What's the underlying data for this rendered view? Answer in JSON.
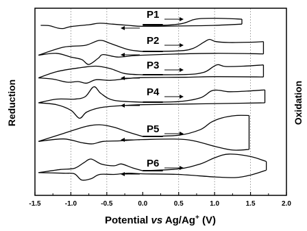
{
  "chart_data": {
    "type": "line",
    "title": "",
    "xlabel_parts": [
      "Potential ",
      "vs",
      " Ag/Ag",
      "+",
      " (V)"
    ],
    "ylabel_left": "Reduction",
    "ylabel_right": "Oxidation",
    "xlim": [
      -1.5,
      2.0
    ],
    "xticks": [
      -1.5,
      -1.0,
      -0.5,
      0.0,
      0.5,
      1.0,
      1.5,
      2.0
    ],
    "xtick_labels": [
      "-1.5",
      "-1.0",
      "-0.5",
      "0.0",
      "0.5",
      "1.0",
      "1.5",
      "2.0"
    ],
    "gridlines": [
      -1.0,
      -0.5,
      0.5,
      1.0,
      1.5
    ],
    "grid": "vertical dashed",
    "series": [
      {
        "name": "P1",
        "baseline": 0.0,
        "upper": [
          [
            0.0,
            0.0
          ],
          [
            0.3,
            0.02
          ],
          [
            0.55,
            0.3
          ],
          [
            0.7,
            0.9
          ],
          [
            0.8,
            1.1
          ],
          [
            1.0,
            1.15
          ],
          [
            1.2,
            1.1
          ],
          [
            1.38,
            1.0
          ]
        ],
        "lower": [
          [
            -1.42,
            0.0
          ],
          [
            -1.3,
            -0.05
          ],
          [
            -1.18,
            -0.45
          ],
          [
            -1.1,
            -0.5
          ],
          [
            -1.0,
            -0.2
          ],
          [
            -0.75,
            0.1
          ],
          [
            -0.6,
            0.35
          ],
          [
            -0.42,
            0.2
          ],
          [
            -0.2,
            0.0
          ],
          [
            0.0,
            -0.15
          ],
          [
            0.5,
            -0.1
          ],
          [
            1.0,
            0.0
          ],
          [
            1.38,
            0.2
          ]
        ]
      },
      {
        "name": "P2",
        "baseline": 0.0,
        "upper": [
          [
            0.0,
            0.1
          ],
          [
            0.5,
            0.2
          ],
          [
            0.7,
            0.6
          ],
          [
            0.85,
            1.6
          ],
          [
            0.93,
            2.05
          ],
          [
            1.02,
            1.7
          ],
          [
            1.2,
            1.55
          ],
          [
            1.5,
            1.6
          ],
          [
            1.68,
            1.7
          ]
        ],
        "lower": [
          [
            -1.45,
            -0.5
          ],
          [
            -1.2,
            -0.2
          ],
          [
            -1.0,
            -0.8
          ],
          [
            -0.85,
            -1.2
          ],
          [
            -0.75,
            -2.0
          ],
          [
            -0.62,
            -1.0
          ],
          [
            -0.55,
            -0.4
          ],
          [
            -0.35,
            -0.8
          ],
          [
            -0.15,
            -0.6
          ],
          [
            0.0,
            -0.5
          ],
          [
            0.5,
            -0.3
          ],
          [
            1.0,
            -0.2
          ],
          [
            1.5,
            -0.25
          ],
          [
            1.68,
            -0.3
          ]
        ],
        "upper_left": [
          [
            -1.45,
            -0.5
          ],
          [
            -1.1,
            0.8
          ],
          [
            -0.8,
            1.1
          ],
          [
            -0.6,
            1.9
          ],
          [
            -0.45,
            1.4
          ],
          [
            -0.2,
            0.4
          ],
          [
            0.0,
            0.1
          ]
        ]
      },
      {
        "name": "P3",
        "baseline": 0.0,
        "upper": [
          [
            0.0,
            0.1
          ],
          [
            0.6,
            0.15
          ],
          [
            0.85,
            0.5
          ],
          [
            0.98,
            1.4
          ],
          [
            1.05,
            1.75
          ],
          [
            1.15,
            1.45
          ],
          [
            1.4,
            1.5
          ],
          [
            1.68,
            1.7
          ]
        ],
        "lower": [
          [
            -1.45,
            -0.4
          ],
          [
            -1.25,
            -0.6
          ],
          [
            -1.05,
            -1.1
          ],
          [
            -0.9,
            -1.0
          ],
          [
            -0.78,
            -1.25
          ],
          [
            -0.65,
            -0.7
          ],
          [
            -0.45,
            -0.8
          ],
          [
            -0.2,
            -0.5
          ],
          [
            0.0,
            -0.35
          ],
          [
            0.6,
            -0.3
          ],
          [
            1.0,
            -0.2
          ],
          [
            1.68,
            -0.25
          ]
        ],
        "upper_left": [
          [
            -1.45,
            -0.4
          ],
          [
            -1.2,
            0.6
          ],
          [
            -0.9,
            1.2
          ],
          [
            -0.65,
            1.5
          ],
          [
            -0.45,
            1.1
          ],
          [
            -0.25,
            0.3
          ],
          [
            0.0,
            0.1
          ]
        ]
      },
      {
        "name": "P4",
        "baseline": 0.0,
        "upper": [
          [
            0.0,
            0.1
          ],
          [
            0.5,
            0.2
          ],
          [
            0.8,
            0.8
          ],
          [
            0.95,
            1.9
          ],
          [
            1.05,
            2.05
          ],
          [
            1.2,
            1.8
          ],
          [
            1.45,
            1.9
          ],
          [
            1.7,
            2.1
          ]
        ],
        "lower": [
          [
            -1.45,
            0.0
          ],
          [
            -1.2,
            -0.3
          ],
          [
            -1.0,
            -1.2
          ],
          [
            -0.88,
            -2.5
          ],
          [
            -0.78,
            -1.5
          ],
          [
            -0.6,
            -0.8
          ],
          [
            -0.35,
            -0.5
          ],
          [
            0.0,
            -0.3
          ],
          [
            0.6,
            -0.2
          ],
          [
            1.2,
            -0.1
          ],
          [
            1.7,
            0.0
          ]
        ],
        "upper_left": [
          [
            -1.45,
            0.0
          ],
          [
            -1.2,
            0.6
          ],
          [
            -0.95,
            0.6
          ],
          [
            -0.8,
            1.0
          ],
          [
            -0.68,
            2.6
          ],
          [
            -0.58,
            1.5
          ],
          [
            -0.4,
            0.4
          ],
          [
            0.0,
            0.1
          ]
        ]
      },
      {
        "name": "P5",
        "baseline": 0.0,
        "upper": [
          [
            0.0,
            0.1
          ],
          [
            0.5,
            0.3
          ],
          [
            0.8,
            1.2
          ],
          [
            0.95,
            2.4
          ],
          [
            1.1,
            3.1
          ],
          [
            1.3,
            3.5
          ],
          [
            1.48,
            3.5
          ]
        ],
        "lower": [
          [
            -1.45,
            -0.7
          ],
          [
            -1.1,
            -0.3
          ],
          [
            -0.85,
            -0.9
          ],
          [
            -0.7,
            -1.1
          ],
          [
            -0.55,
            -0.7
          ],
          [
            -0.3,
            -0.6
          ],
          [
            0.0,
            -0.4
          ],
          [
            0.6,
            -0.4
          ],
          [
            1.0,
            -1.5
          ],
          [
            1.25,
            -2.1
          ],
          [
            1.48,
            -2.0
          ]
        ],
        "upper_left": [
          [
            -1.45,
            -0.7
          ],
          [
            -1.1,
            0.6
          ],
          [
            -0.8,
            1.7
          ],
          [
            -0.6,
            2.0
          ],
          [
            -0.4,
            1.6
          ],
          [
            -0.2,
            0.8
          ],
          [
            0.0,
            0.1
          ]
        ]
      },
      {
        "name": "P6",
        "baseline": 0.0,
        "upper": [
          [
            0.0,
            0.1
          ],
          [
            0.5,
            0.4
          ],
          [
            0.8,
            1.2
          ],
          [
            1.0,
            2.2
          ],
          [
            1.2,
            2.8
          ],
          [
            1.5,
            2.4
          ],
          [
            1.72,
            1.6
          ]
        ],
        "lower": [
          [
            -1.45,
            -0.2
          ],
          [
            -1.1,
            -0.3
          ],
          [
            -0.95,
            -0.4
          ],
          [
            -0.85,
            -1.4
          ],
          [
            -0.72,
            -1.2
          ],
          [
            -0.6,
            -0.5
          ],
          [
            -0.4,
            -0.5
          ],
          [
            -0.2,
            -0.3
          ],
          [
            0.0,
            -0.4
          ],
          [
            0.5,
            -0.5
          ],
          [
            1.0,
            -0.9
          ],
          [
            1.3,
            -1.0
          ],
          [
            1.5,
            -0.6
          ],
          [
            1.72,
            0.2
          ]
        ],
        "upper_left": [
          [
            -1.45,
            -0.2
          ],
          [
            -1.15,
            0.3
          ],
          [
            -0.95,
            0.5
          ],
          [
            -0.82,
            1.4
          ],
          [
            -0.72,
            2.0
          ],
          [
            -0.58,
            1.2
          ],
          [
            -0.4,
            0.9
          ],
          [
            -0.3,
            1.2
          ],
          [
            -0.15,
            0.6
          ],
          [
            0.0,
            0.1
          ]
        ]
      }
    ],
    "legend": "labels on curves with direction arrows"
  }
}
